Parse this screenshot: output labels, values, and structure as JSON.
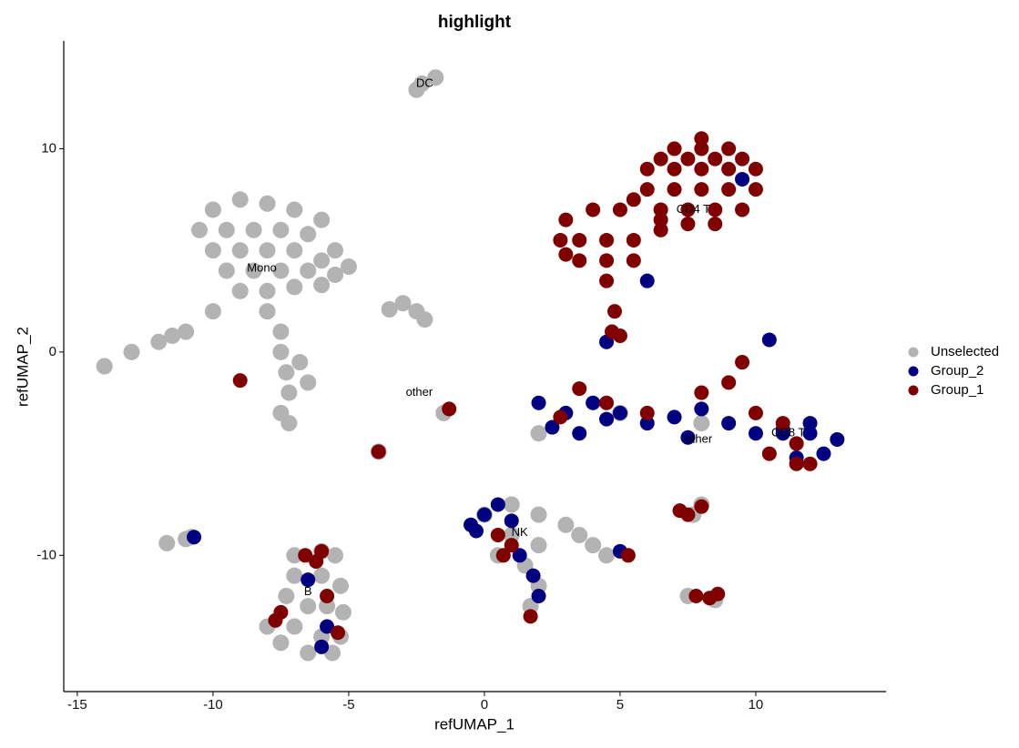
{
  "chart_data": {
    "type": "scatter",
    "title": "highlight",
    "x_label": "refUMAP_1",
    "y_label": "refUMAP_2",
    "xlim": [
      -15.5,
      14.8
    ],
    "ylim": [
      -16.7,
      15.3
    ],
    "xticks": [
      -15,
      -10,
      -5,
      0,
      5,
      10
    ],
    "yticks": [
      -10,
      0,
      10
    ],
    "grid": false,
    "legend": "right",
    "series": [
      {
        "name": "Unselected",
        "color": "#b3b3b3",
        "x": [
          -10,
          -9,
          -8,
          -7,
          -6,
          -10.5,
          -9.5,
          -8.5,
          -7.5,
          -6.5,
          -5.5,
          -10,
          -9,
          -8,
          -7,
          -6,
          -5,
          -9.5,
          -8.5,
          -7.5,
          -6.5,
          -5.5,
          -9,
          -8,
          -7,
          -6,
          -8,
          -7.5,
          -7.5,
          -7.3,
          -7.2,
          -7.5,
          -7.2,
          -6.8,
          -6.5,
          -10,
          -11,
          -12,
          -13,
          -14,
          -11.5,
          -2.3,
          -1.8,
          -2.5,
          -3,
          -2.5,
          -2.2,
          -3.5,
          -1.5,
          -3.9,
          -11,
          -11.7,
          -10.8,
          -7,
          -6,
          -5.5,
          -7,
          -6,
          -5.3,
          -7.3,
          -6.5,
          -5.8,
          -5.2,
          -8,
          -7,
          -6,
          -5.3,
          -7.5,
          -6.5,
          -5.6,
          0,
          1,
          2,
          3,
          1,
          2,
          3.5,
          1.5,
          2,
          1.7,
          4,
          4.5,
          0.5,
          2,
          5,
          8,
          7.7,
          8,
          7.5,
          8.5
        ],
        "y": [
          7,
          7.5,
          7.3,
          7,
          6.5,
          6,
          6,
          6,
          6,
          5.8,
          5,
          5,
          5,
          5,
          5,
          4.5,
          4.2,
          4,
          4,
          4,
          4,
          3.8,
          3,
          3,
          3.2,
          3.3,
          2,
          1,
          0,
          -1,
          -2,
          -3,
          -3.5,
          -0.5,
          -1.5,
          2,
          1,
          0.5,
          0,
          -0.7,
          0.8,
          13.2,
          13.5,
          12.9,
          2.4,
          2,
          1.6,
          2.1,
          -3,
          -4.9,
          -9.2,
          -9.4,
          -9.1,
          -10,
          -9.8,
          -10,
          -11,
          -11,
          -11.5,
          -12,
          -12.5,
          -12.5,
          -12.8,
          -13.5,
          -13.5,
          -14,
          -14,
          -14.3,
          -14.8,
          -14.8,
          -8,
          -7.5,
          -8,
          -8.5,
          -9,
          -9.5,
          -9,
          -10.5,
          -11.5,
          -12.5,
          -9.5,
          -10,
          -10,
          -4,
          -3,
          -3.5,
          -8,
          -7.5,
          -12,
          -12.2
        ]
      },
      {
        "name": "Group_2",
        "color": "#000080",
        "x": [
          2,
          3,
          4,
          3.5,
          5,
          6,
          7,
          8,
          9,
          10,
          11,
          12,
          13,
          12.5,
          11.5,
          12,
          11,
          2.5,
          4.5,
          7.5,
          -0.5,
          0,
          0.5,
          1,
          1.3,
          1.8,
          2,
          -0.3,
          5,
          4.5,
          9.5,
          6,
          -10.7,
          -6.5,
          -5.8,
          -6,
          10.5
        ],
        "y": [
          -2.5,
          -3,
          -2.5,
          -4,
          -3,
          -3.5,
          -3.2,
          -2.8,
          -3.5,
          -4,
          -4,
          -4,
          -4.3,
          -5,
          -5.2,
          -3.5,
          -3.8,
          -3.7,
          -3.3,
          -4.2,
          -8.5,
          -8,
          -7.5,
          -8.3,
          -10,
          -11,
          -12,
          -8.8,
          -9.8,
          0.5,
          8.5,
          3.5,
          -9.1,
          -11.2,
          -13.5,
          -14.5,
          0.6
        ]
      },
      {
        "name": "Group_1",
        "color": "#800000",
        "x": [
          8,
          7,
          8,
          9,
          6.5,
          7.5,
          8.5,
          9.5,
          6,
          7,
          8,
          9,
          10,
          6,
          7,
          8,
          9,
          10,
          5.5,
          6.5,
          7.5,
          8.5,
          9.5,
          3,
          4,
          5,
          2.8,
          3.5,
          4.5,
          5.5,
          6.5,
          7.5,
          3.5,
          4.5,
          5.5,
          4.5,
          4.8,
          4.7,
          5,
          6.5,
          8.5,
          3,
          3.5,
          4.5,
          8,
          9,
          9.5,
          10,
          11,
          11.5,
          10.5,
          11.5,
          6,
          2.8,
          12,
          0.5,
          1,
          0.7,
          1.7,
          5.3,
          7.5,
          8,
          7.2,
          7.8,
          8.3,
          8.6,
          -1.3,
          -9,
          -7.5,
          -7.7,
          -6,
          -5.8,
          -5.4,
          -6.6,
          -6.2,
          -3.9
        ],
        "y": [
          10.5,
          10,
          10,
          10,
          9.5,
          9.5,
          9.5,
          9.5,
          9,
          9,
          9,
          9,
          9,
          8,
          8,
          8,
          8,
          8,
          7.5,
          7,
          7,
          7,
          7,
          6.5,
          7,
          7,
          5.5,
          5.5,
          5.5,
          5.5,
          6,
          6.3,
          4.5,
          4.5,
          4.5,
          3.5,
          2,
          1,
          0.8,
          6.5,
          6.3,
          4.8,
          -1.8,
          -2.5,
          -2,
          -1.5,
          -0.5,
          -3,
          -3.5,
          -4.5,
          -5,
          -5.5,
          -3,
          -3.2,
          -5.5,
          -9,
          -9.5,
          -10,
          -13,
          -10,
          -8,
          -7.6,
          -7.8,
          -12,
          -12.1,
          -11.9,
          -2.8,
          -1.4,
          -12.8,
          -13.2,
          -9.8,
          -12,
          -13.8,
          -10,
          -10.3,
          -4.9
        ]
      }
    ],
    "labels": [
      {
        "text": "DC",
        "x": -2.2,
        "y": 13.2
      },
      {
        "text": "Mono",
        "x": -8.2,
        "y": 4.1
      },
      {
        "text": "other",
        "x": -2.4,
        "y": -2
      },
      {
        "text": "CD4 T",
        "x": 7.7,
        "y": 7
      },
      {
        "text": "other",
        "x": 7.9,
        "y": -4.3
      },
      {
        "text": "CD8 T",
        "x": 11.2,
        "y": -4
      },
      {
        "text": "NK",
        "x": 1.3,
        "y": -8.9
      },
      {
        "text": "B",
        "x": -6.5,
        "y": -11.8
      }
    ]
  }
}
